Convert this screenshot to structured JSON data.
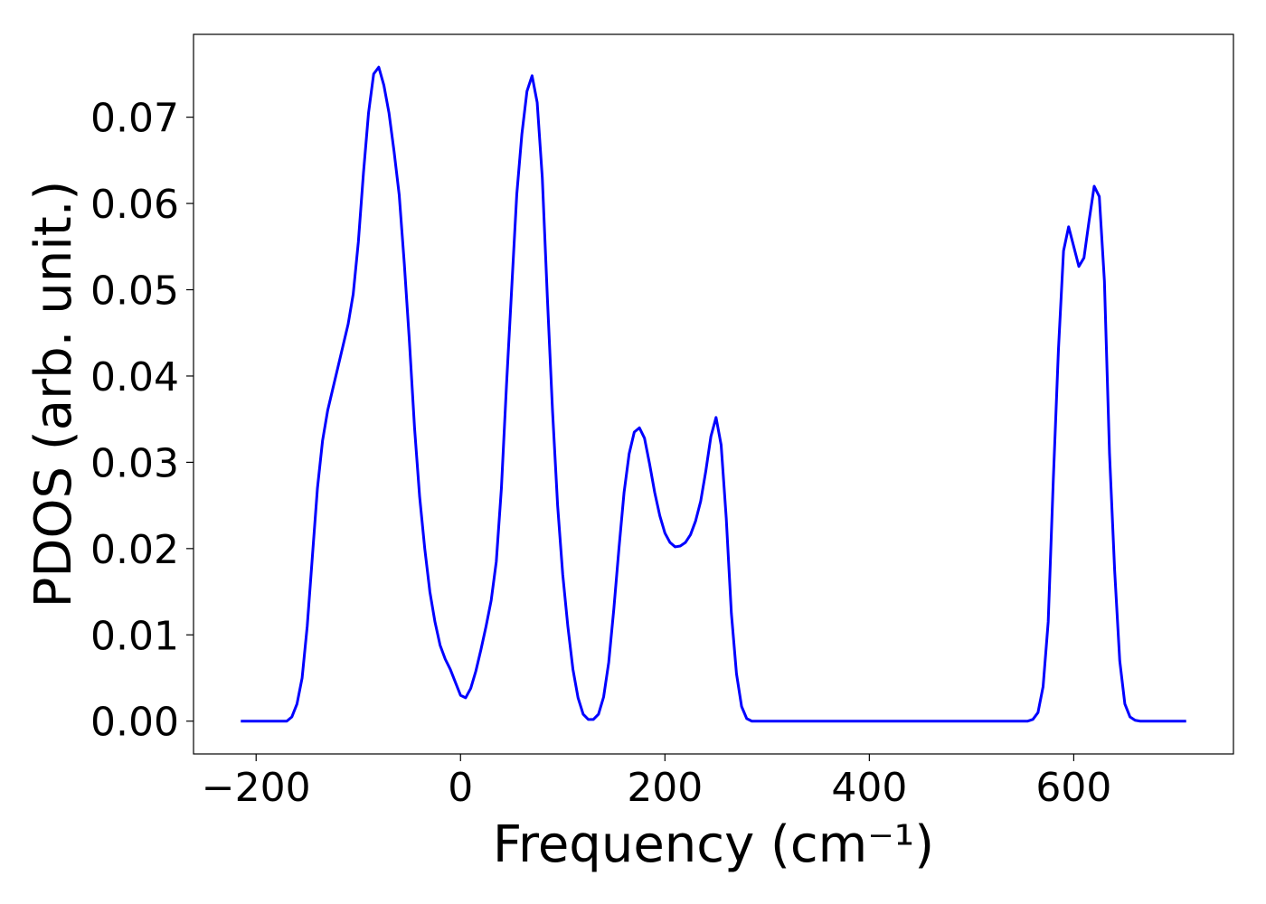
{
  "chart_data": {
    "type": "line",
    "xlabel": "Frequency (cm⁻¹)",
    "ylabel": "PDOS (arb. unit.)",
    "xlim": [
      -261.25,
      756.25
    ],
    "ylim": [
      -0.0038,
      0.0796
    ],
    "xticks": [
      {
        "value": -200,
        "label": "−200"
      },
      0,
      200,
      400,
      600
    ],
    "yticks": [
      {
        "value": 0,
        "label": "0.00"
      },
      {
        "value": 0.01,
        "label": "0.01"
      },
      {
        "value": 0.02,
        "label": "0.02"
      },
      {
        "value": 0.03,
        "label": "0.03"
      },
      {
        "value": 0.04,
        "label": "0.04"
      },
      {
        "value": 0.05,
        "label": "0.05"
      },
      {
        "value": 0.06,
        "label": "0.06"
      },
      {
        "value": 0.07,
        "label": "0.07"
      }
    ],
    "grid": false,
    "x": [
      -215,
      -170,
      -165,
      -160,
      -155,
      -150,
      -145,
      -140,
      -135,
      -130,
      -125,
      -120,
      -115,
      -110,
      -105,
      -100,
      -95,
      -90,
      -85,
      -80,
      -75,
      -70,
      -65,
      -60,
      -55,
      -50,
      -45,
      -40,
      -35,
      -30,
      -25,
      -20,
      -15,
      -10,
      -5,
      0,
      5,
      10,
      15,
      20,
      25,
      30,
      35,
      40,
      45,
      50,
      55,
      60,
      65,
      70,
      75,
      80,
      85,
      90,
      95,
      100,
      105,
      110,
      115,
      120,
      125,
      130,
      135,
      140,
      145,
      150,
      155,
      160,
      165,
      170,
      175,
      180,
      185,
      190,
      195,
      200,
      205,
      210,
      215,
      220,
      225,
      230,
      235,
      240,
      245,
      250,
      255,
      260,
      265,
      270,
      275,
      280,
      285,
      555,
      560,
      565,
      570,
      575,
      580,
      585,
      590,
      595,
      600,
      605,
      610,
      615,
      620,
      625,
      630,
      635,
      640,
      645,
      650,
      655,
      660,
      665,
      710
    ],
    "series": [
      {
        "name": "PDOS",
        "color": "#0000ff",
        "values": [
          0,
          0,
          0.0005,
          0.002,
          0.005,
          0.011,
          0.019,
          0.027,
          0.0325,
          0.036,
          0.0385,
          0.041,
          0.0435,
          0.046,
          0.0495,
          0.0555,
          0.0635,
          0.0705,
          0.075,
          0.0758,
          0.0737,
          0.0705,
          0.066,
          0.061,
          0.053,
          0.044,
          0.034,
          0.026,
          0.02,
          0.015,
          0.0115,
          0.0088,
          0.0072,
          0.006,
          0.0045,
          0.003,
          0.0027,
          0.0038,
          0.0058,
          0.0083,
          0.011,
          0.014,
          0.0185,
          0.027,
          0.039,
          0.05,
          0.061,
          0.068,
          0.073,
          0.0748,
          0.0717,
          0.063,
          0.049,
          0.036,
          0.025,
          0.017,
          0.011,
          0.006,
          0.0027,
          0.0008,
          0.0002,
          0.0002,
          0.0008,
          0.0028,
          0.0068,
          0.013,
          0.02,
          0.0265,
          0.031,
          0.0335,
          0.034,
          0.0328,
          0.0298,
          0.0265,
          0.0238,
          0.0218,
          0.0207,
          0.0202,
          0.0203,
          0.0207,
          0.0216,
          0.0232,
          0.0255,
          0.029,
          0.033,
          0.0352,
          0.032,
          0.0235,
          0.0125,
          0.0055,
          0.0017,
          0.0003,
          0,
          0,
          0.0002,
          0.001,
          0.004,
          0.0115,
          0.028,
          0.043,
          0.0545,
          0.0573,
          0.055,
          0.0527,
          0.0537,
          0.058,
          0.062,
          0.0608,
          0.051,
          0.031,
          0.0175,
          0.007,
          0.002,
          0.0005,
          0.0001,
          0,
          0
        ]
      }
    ]
  }
}
